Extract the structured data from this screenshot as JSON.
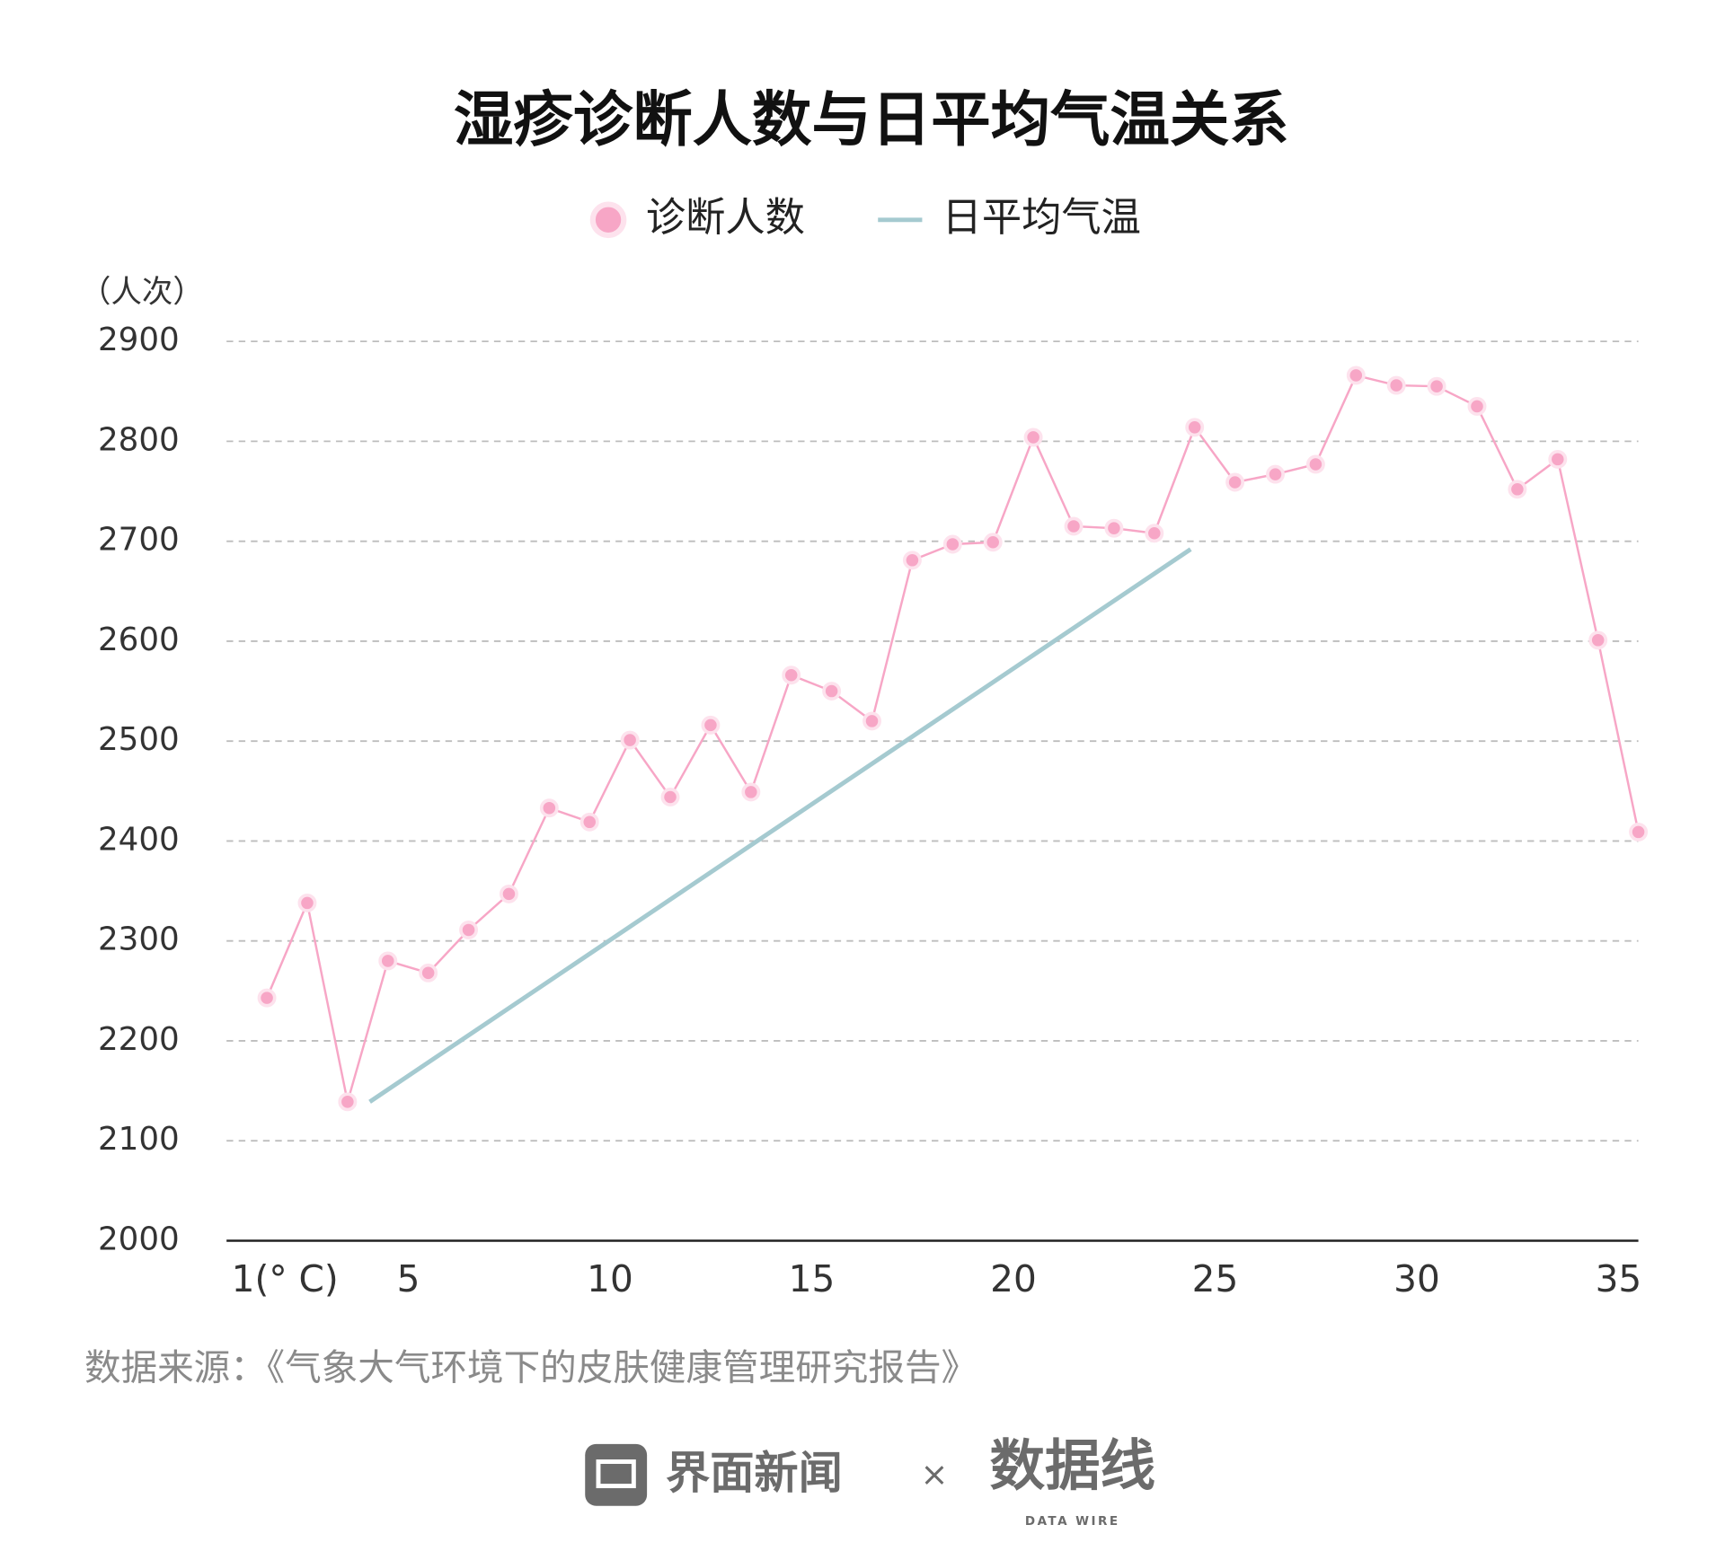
{
  "chart_data": {
    "type": "line",
    "title": "湿疹诊断人数与日平均气温关系",
    "y_label": "（人次）",
    "xlim": [
      0,
      35
    ],
    "xticks": [
      {
        "value": 1,
        "label": "1(° C)"
      },
      5,
      10,
      15,
      20,
      25,
      30,
      35
    ],
    "ylim": [
      2000,
      2900
    ],
    "yticks": [
      2000,
      2100,
      2200,
      2300,
      2400,
      2500,
      2600,
      2700,
      2800,
      2900
    ],
    "grid": true,
    "legend": "top",
    "series": [
      {
        "name": "诊断人数",
        "color": "#f7a6c6",
        "markers": true,
        "x": [
          1,
          2,
          3,
          4,
          5,
          6,
          7,
          8,
          9,
          10,
          11,
          12,
          13,
          14,
          15,
          16,
          17,
          18,
          19,
          20,
          21,
          22,
          23,
          24,
          25,
          26,
          27,
          28,
          29,
          30,
          31,
          32,
          33,
          34,
          35
        ],
        "values": [
          2243,
          2338,
          2139,
          2280,
          2268,
          2311,
          2347,
          2433,
          2419,
          2501,
          2444,
          2516,
          2449,
          2566,
          2550,
          2520,
          2681,
          2697,
          2699,
          2804,
          2715,
          2713,
          2708,
          2814,
          2759,
          2767,
          2777,
          2866,
          2856,
          2855,
          2835,
          2752,
          2782,
          2601,
          2409
        ]
      },
      {
        "name": "日平均气温",
        "color": "#a5cad0",
        "markers": false,
        "x": [
          3.55,
          23.9
        ],
        "values": [
          2139,
          2692
        ]
      }
    ]
  },
  "source": "数据来源：《气象大气环境下的皮肤健康管理研究报告》",
  "footer": {
    "brand": "界面新闻",
    "separator": "×",
    "logo": "数据线",
    "logo_sub": "DATA WIRE"
  }
}
